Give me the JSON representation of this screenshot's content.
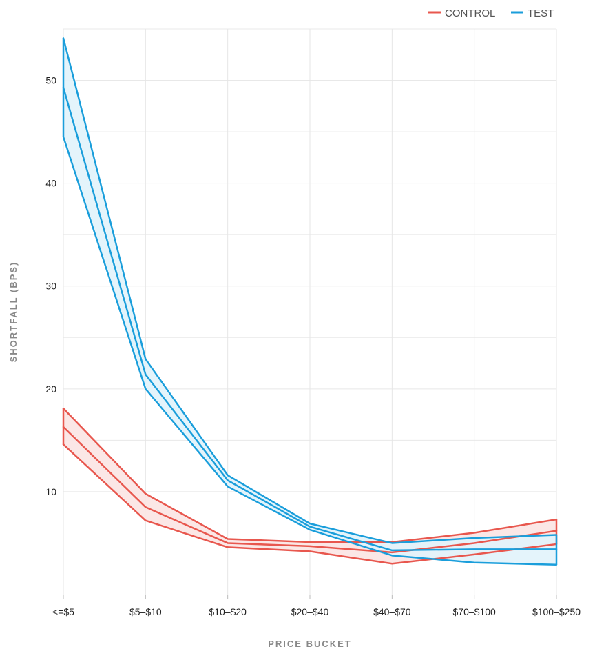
{
  "chart_data": {
    "type": "line",
    "title": "",
    "xlabel": "PRICE BUCKET",
    "ylabel": "SHORTFALL (BPS)",
    "categories": [
      "<=$5",
      "$5–$10",
      "$10–$20",
      "$20–$40",
      "$40–$70",
      "$70–$100",
      "$100–$250"
    ],
    "ylim": [
      0,
      55
    ],
    "yticks": [
      10,
      20,
      30,
      40,
      50
    ],
    "minor_grid_step": 5,
    "grid": true,
    "legend_position": "top-right",
    "series": [
      {
        "name": "CONTROL",
        "color": "#e8574e",
        "fill": "#fbe4e3",
        "values": [
          16.3,
          8.5,
          5.0,
          4.7,
          4.1,
          5.0,
          6.2
        ],
        "upper": [
          18.1,
          9.8,
          5.4,
          5.1,
          5.1,
          6.0,
          7.3
        ],
        "lower": [
          14.6,
          7.2,
          4.6,
          4.2,
          3.0,
          3.9,
          4.9
        ]
      },
      {
        "name": "TEST",
        "color": "#1a9edb",
        "fill": "#e1f3fb",
        "values": [
          49.3,
          21.4,
          11.1,
          6.6,
          4.3,
          4.4,
          4.4
        ],
        "upper": [
          54.1,
          22.9,
          11.6,
          6.9,
          5.0,
          5.5,
          5.8
        ],
        "lower": [
          44.5,
          20.0,
          10.5,
          6.3,
          3.8,
          3.1,
          2.9
        ]
      }
    ]
  }
}
